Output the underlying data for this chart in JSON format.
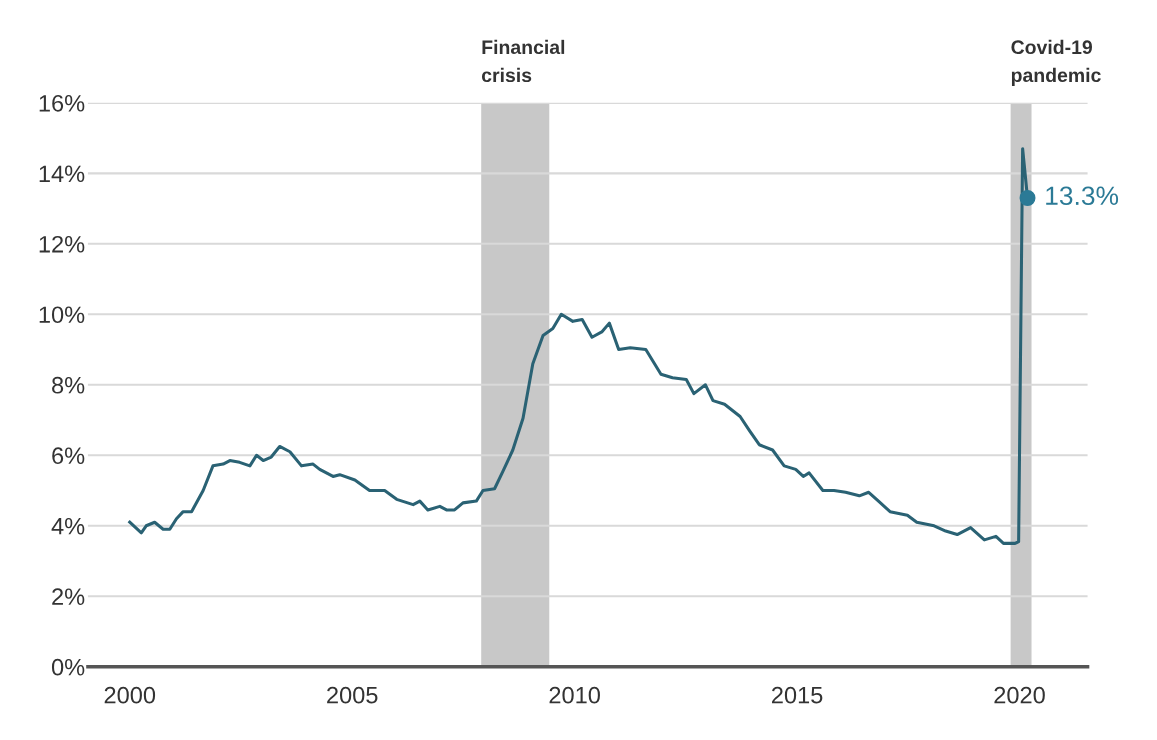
{
  "chart_data": {
    "type": "line",
    "series": [
      {
        "color": "#2a6274",
        "x": [
          2000.0,
          2000.26,
          2000.37,
          2000.56,
          2000.75,
          2000.9,
          2001.05,
          2001.2,
          2001.39,
          2001.65,
          2001.87,
          2002.1,
          2002.25,
          2002.47,
          2002.7,
          2002.85,
          2003.0,
          2003.18,
          2003.37,
          2003.6,
          2003.86,
          2004.12,
          2004.27,
          2004.57,
          2004.72,
          2005.06,
          2005.39,
          2005.73,
          2006.0,
          2006.37,
          2006.52,
          2006.7,
          2006.97,
          2007.12,
          2007.3,
          2007.49,
          2007.79,
          2007.94,
          2008.2,
          2008.39,
          2008.61,
          2008.84,
          2009.06,
          2009.29,
          2009.51,
          2009.7,
          2009.96,
          2010.17,
          2010.39,
          2010.61,
          2010.78,
          2010.99,
          2011.25,
          2011.6,
          2011.94,
          2012.2,
          2012.51,
          2012.68,
          2012.94,
          2013.11,
          2013.37,
          2013.72,
          2013.93,
          2014.15,
          2014.45,
          2014.71,
          2014.97,
          2015.14,
          2015.27,
          2015.58,
          2015.83,
          2016.09,
          2016.4,
          2016.61,
          2016.83,
          2017.09,
          2017.48,
          2017.69,
          2018.08,
          2018.34,
          2018.6,
          2018.9,
          2019.21,
          2019.47,
          2019.64,
          2019.9,
          2019.98,
          2020.07,
          2020.18
        ],
        "values": [
          4.1,
          3.8,
          4.0,
          4.1,
          3.9,
          3.9,
          4.2,
          4.4,
          4.4,
          5.0,
          5.7,
          5.75,
          5.85,
          5.8,
          5.7,
          6.0,
          5.85,
          5.95,
          6.25,
          6.1,
          5.7,
          5.75,
          5.6,
          5.4,
          5.45,
          5.3,
          5.0,
          5.0,
          4.75,
          4.6,
          4.7,
          4.45,
          4.55,
          4.45,
          4.45,
          4.65,
          4.7,
          5.0,
          5.05,
          5.55,
          6.15,
          7.05,
          8.6,
          9.4,
          9.6,
          10.0,
          9.8,
          9.85,
          9.35,
          9.5,
          9.75,
          9.0,
          9.05,
          9.0,
          8.3,
          8.2,
          8.15,
          7.75,
          8.0,
          7.55,
          7.45,
          7.1,
          6.7,
          6.3,
          6.15,
          5.7,
          5.6,
          5.4,
          5.5,
          5.0,
          5.0,
          4.95,
          4.85,
          4.95,
          4.7,
          4.4,
          4.3,
          4.1,
          4.0,
          3.85,
          3.75,
          3.95,
          3.6,
          3.7,
          3.5,
          3.5,
          3.55,
          14.7,
          13.3
        ]
      },
      {
        "type": "scatter",
        "color": "#2b7a96",
        "x": [
          2020.18
        ],
        "values": [
          13.3
        ]
      }
    ],
    "annotations": [
      {
        "text": "13.3%",
        "x": 2020.18,
        "y": 13.3
      }
    ],
    "bands": [
      {
        "axis": "x",
        "from": 2007.9,
        "to": 2009.43,
        "label": "Financial\ncrisis",
        "color": "#c8c8c8"
      },
      {
        "axis": "x",
        "from": 2019.8,
        "to": 2020.27,
        "label": "Covid-19\npandemic",
        "color": "#c8c8c8"
      }
    ],
    "xlim": [
      1999.06,
      2021.53
    ],
    "xticks": [
      2000,
      2005,
      2010,
      2015,
      2020
    ],
    "ylim": [
      0,
      16
    ],
    "yticks": [
      {
        "value": 0,
        "label": "0%"
      },
      {
        "value": 2,
        "label": "2%"
      },
      {
        "value": 4,
        "label": "4%"
      },
      {
        "value": 6,
        "label": "6%"
      },
      {
        "value": 8,
        "label": "8%"
      },
      {
        "value": 10,
        "label": "10%"
      },
      {
        "value": 12,
        "label": "12%"
      },
      {
        "value": 14,
        "label": "14%"
      },
      {
        "value": 16,
        "label": "16%"
      }
    ],
    "grid": "y"
  }
}
